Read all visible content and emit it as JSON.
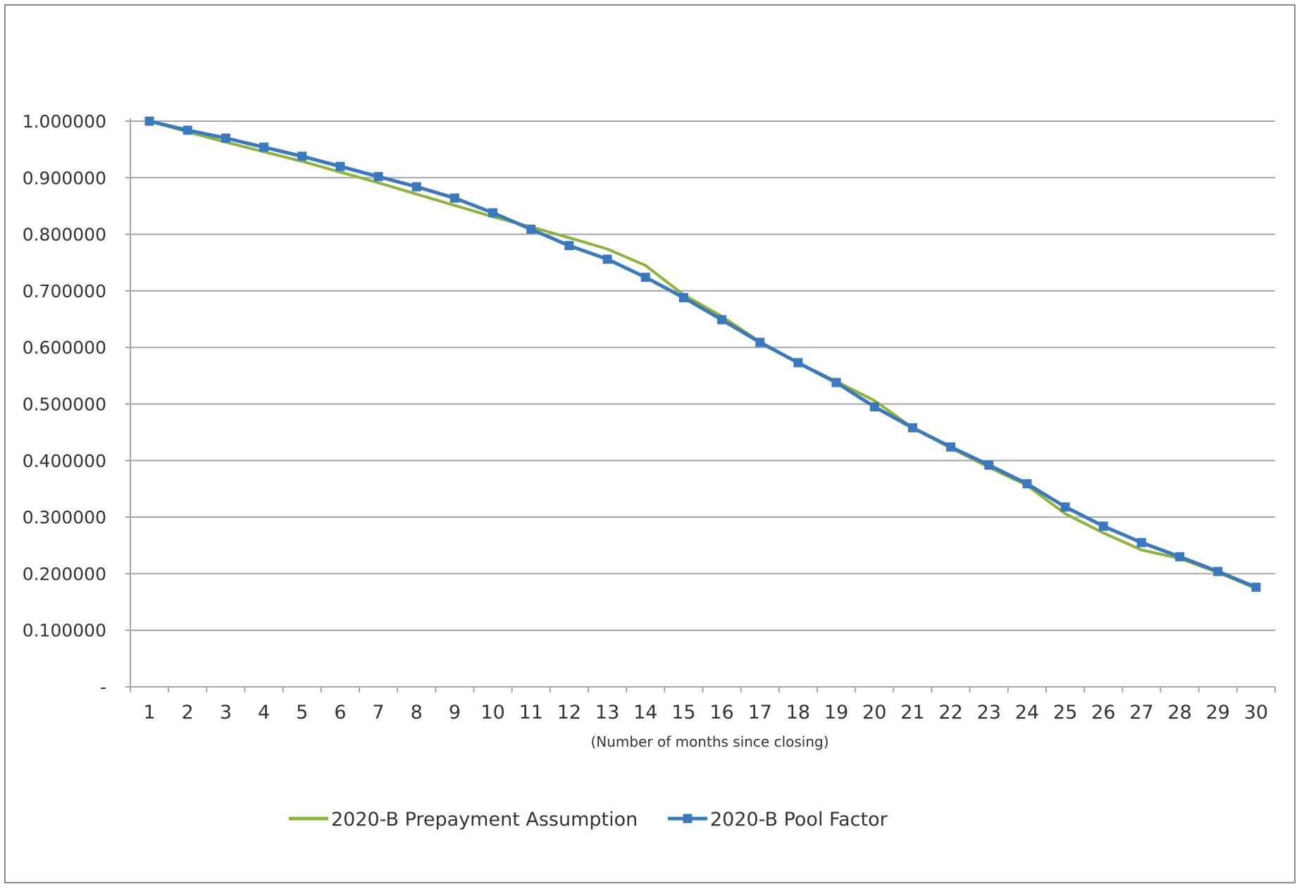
{
  "chart_data": {
    "type": "line",
    "title": "",
    "xlabel": "(Number of months since closing)",
    "ylabel": "",
    "ylim": [
      0,
      1.0
    ],
    "y_ticks": [
      {
        "value": 0.0,
        "label": "-"
      },
      {
        "value": 0.1,
        "label": "0.100000"
      },
      {
        "value": 0.2,
        "label": "0.200000"
      },
      {
        "value": 0.3,
        "label": "0.300000"
      },
      {
        "value": 0.4,
        "label": "0.400000"
      },
      {
        "value": 0.5,
        "label": "0.500000"
      },
      {
        "value": 0.6,
        "label": "0.600000"
      },
      {
        "value": 0.7,
        "label": "0.700000"
      },
      {
        "value": 0.8,
        "label": "0.800000"
      },
      {
        "value": 0.9,
        "label": "0.900000"
      },
      {
        "value": 1.0,
        "label": "1.000000"
      }
    ],
    "grid": true,
    "legend_position": "bottom",
    "categories": [
      "1",
      "2",
      "3",
      "4",
      "5",
      "6",
      "7",
      "8",
      "9",
      "10",
      "11",
      "12",
      "13",
      "14",
      "15",
      "16",
      "17",
      "18",
      "19",
      "20",
      "21",
      "22",
      "23",
      "24",
      "25",
      "26",
      "27",
      "28",
      "29",
      "30"
    ],
    "series": [
      {
        "name": "2020-B Prepayment Assumption",
        "color": "#8DB33A",
        "marker": "none",
        "values": [
          1.0,
          0.981,
          0.963,
          0.946,
          0.929,
          0.91,
          0.891,
          0.871,
          0.851,
          0.831,
          0.813,
          0.794,
          0.774,
          0.745,
          0.693,
          0.655,
          0.61,
          0.573,
          0.54,
          0.506,
          0.458,
          0.422,
          0.388,
          0.356,
          0.306,
          0.272,
          0.242,
          0.227,
          0.202,
          0.174
        ]
      },
      {
        "name": "2020-B Pool Factor",
        "color": "#3A79BE",
        "marker": "square",
        "values": [
          1.0,
          0.984,
          0.97,
          0.954,
          0.938,
          0.92,
          0.902,
          0.884,
          0.864,
          0.838,
          0.809,
          0.78,
          0.756,
          0.724,
          0.688,
          0.649,
          0.609,
          0.573,
          0.538,
          0.495,
          0.458,
          0.424,
          0.392,
          0.359,
          0.318,
          0.284,
          0.255,
          0.23,
          0.204,
          0.176
        ]
      }
    ]
  }
}
